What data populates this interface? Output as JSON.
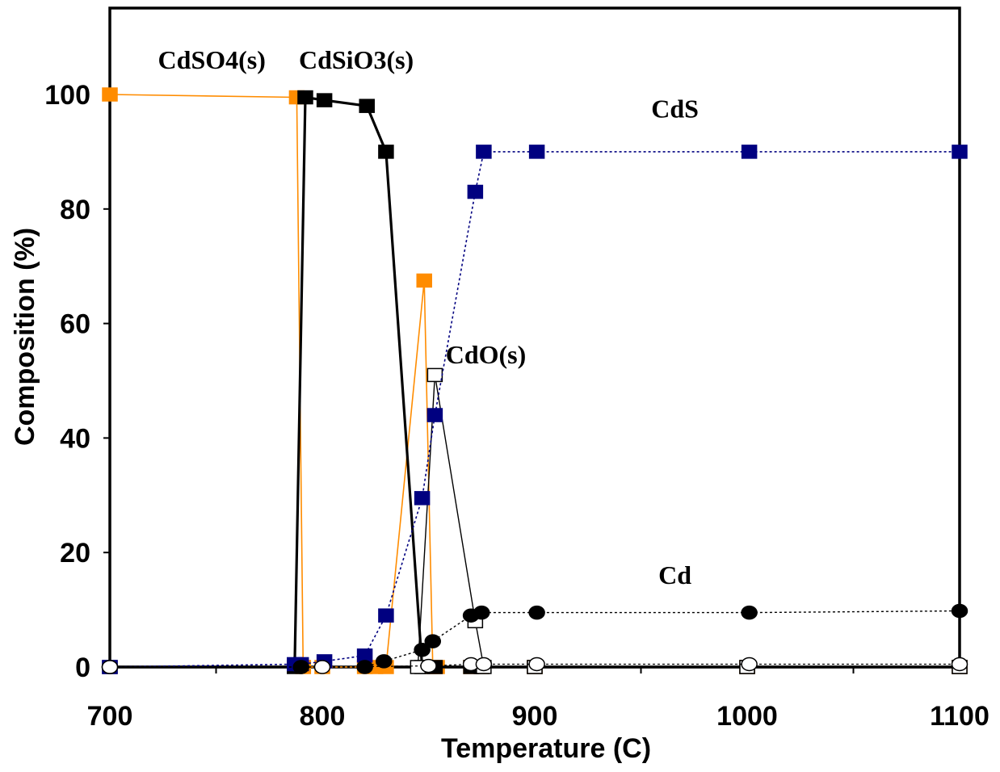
{
  "chart_data": {
    "type": "line",
    "xlabel": "Temperature (C)",
    "ylabel": "Composition (%)",
    "xlim": [
      700,
      1100
    ],
    "ylim": [
      0,
      112
    ],
    "x_ticks": [
      700,
      800,
      900,
      1000,
      1100
    ],
    "x_minor_ticks": [
      750,
      850,
      950,
      1050
    ],
    "y_ticks": [
      0,
      20,
      40,
      60,
      80,
      100
    ],
    "grid": false,
    "legend": "none",
    "annotations": [
      {
        "text": "CdSO4(s)",
        "x": 748,
        "y": 104.5
      },
      {
        "text": "CdSiO3(s)",
        "x": 816,
        "y": 104.5
      },
      {
        "text": "CdS",
        "x": 966,
        "y": 96
      },
      {
        "text": "CdO(s)",
        "x": 877,
        "y": 53
      },
      {
        "text": "Cd",
        "x": 966,
        "y": 14.5
      }
    ],
    "series": [
      {
        "color": "#FF8C00",
        "line": "solid",
        "width": 1.6,
        "marker": "square",
        "marker_fill": "#FF8C00",
        "marker_stroke": "#FF8C00",
        "points": [
          [
            700,
            100
          ],
          [
            788,
            99.5
          ],
          [
            791,
            0
          ],
          [
            800,
            0
          ],
          [
            820,
            0
          ],
          [
            825,
            0
          ],
          [
            830,
            0
          ],
          [
            848,
            67.5
          ],
          [
            852,
            0
          ],
          [
            854,
            0
          ],
          [
            870,
            0
          ],
          [
            875,
            0
          ],
          [
            900,
            0
          ],
          [
            1000,
            0
          ],
          [
            1100,
            0
          ]
        ]
      },
      {
        "color": "#000000",
        "line": "solid",
        "width": 3.2,
        "marker": "square",
        "marker_fill": "#000000",
        "marker_stroke": "#000000",
        "points": [
          [
            700,
            0
          ],
          [
            787,
            0
          ],
          [
            792,
            99.5
          ],
          [
            801,
            99
          ],
          [
            821,
            98
          ],
          [
            830,
            90
          ],
          [
            847,
            0
          ],
          [
            853,
            0
          ],
          [
            870,
            0
          ],
          [
            875,
            0
          ],
          [
            900,
            0
          ],
          [
            1000,
            0
          ],
          [
            1100,
            0
          ]
        ]
      },
      {
        "color": "#000000",
        "line": "solid",
        "width": 1.4,
        "marker": "square",
        "marker_fill": "#ffffff",
        "marker_stroke": "#000000",
        "points": [
          [
            845,
            0
          ],
          [
            853,
            51
          ],
          [
            872,
            8
          ],
          [
            876,
            0
          ],
          [
            900,
            0
          ],
          [
            1000,
            0
          ],
          [
            1100,
            0
          ]
        ]
      },
      {
        "color": "#000080",
        "line": "dotted",
        "width": 1.6,
        "marker": "square",
        "marker_fill": "#000080",
        "marker_stroke": "#000080",
        "points": [
          [
            700,
            0
          ],
          [
            787,
            0.5
          ],
          [
            790,
            0.5
          ],
          [
            801,
            1
          ],
          [
            820,
            2
          ],
          [
            830,
            9
          ],
          [
            847,
            29.5
          ],
          [
            853,
            44
          ],
          [
            872,
            83
          ],
          [
            876,
            90
          ],
          [
            901,
            90
          ],
          [
            1001,
            90
          ],
          [
            1100,
            90
          ]
        ]
      },
      {
        "color": "#000000",
        "line": "dotted",
        "width": 1.4,
        "marker": "circle",
        "marker_fill": "#000000",
        "marker_stroke": "#000000",
        "points": [
          [
            700,
            0
          ],
          [
            790,
            0
          ],
          [
            820,
            0
          ],
          [
            829,
            1
          ],
          [
            847,
            3
          ],
          [
            852,
            4.5
          ],
          [
            870,
            9
          ],
          [
            875,
            9.5
          ],
          [
            901,
            9.5
          ],
          [
            1001,
            9.5
          ],
          [
            1100,
            9.8
          ]
        ]
      },
      {
        "color": "#000000",
        "line": "dotted",
        "width": 1.2,
        "marker": "circle",
        "marker_fill": "#ffffff",
        "marker_stroke": "#000000",
        "points": [
          [
            700,
            0
          ],
          [
            800,
            0
          ],
          [
            850,
            0.2
          ],
          [
            870,
            0.5
          ],
          [
            876,
            0.5
          ],
          [
            901,
            0.5
          ],
          [
            1001,
            0.5
          ],
          [
            1100,
            0.5
          ]
        ]
      }
    ]
  }
}
